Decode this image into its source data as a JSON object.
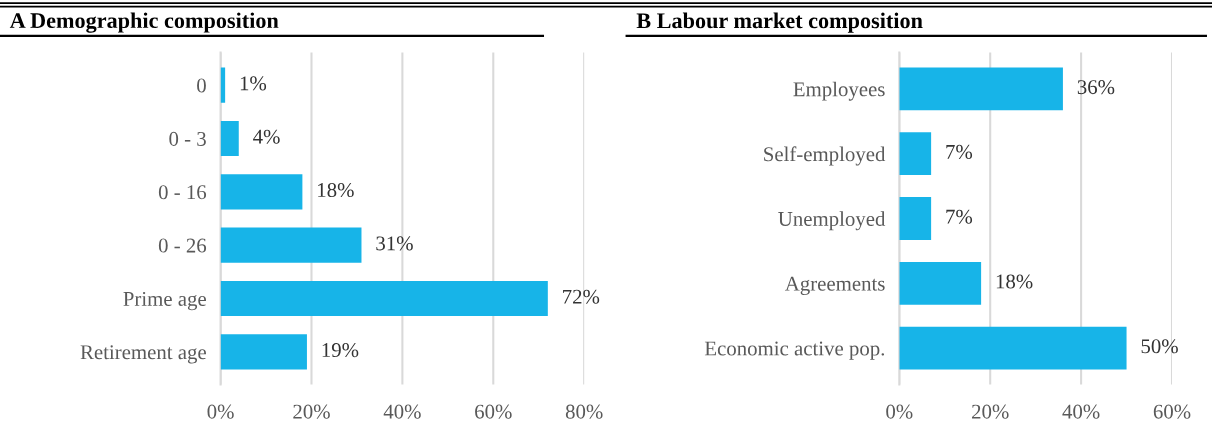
{
  "chart_data": [
    {
      "type": "bar",
      "orientation": "horizontal",
      "title": "A Demographic composition",
      "categories": [
        "0",
        "0 - 3",
        "0 - 16",
        "0 - 26",
        "Prime age",
        "Retirement age"
      ],
      "values": [
        1,
        4,
        18,
        31,
        72,
        19
      ],
      "color": "#17b4e8",
      "value_labels": [
        "1%",
        "4%",
        "18%",
        "31%",
        "72%",
        "19%"
      ],
      "xlim": [
        0,
        80
      ],
      "xticks": [
        {
          "value": 0,
          "label": "0%"
        },
        {
          "value": 20,
          "label": "20%"
        },
        {
          "value": 40,
          "label": "40%"
        },
        {
          "value": 60,
          "label": "60%"
        },
        {
          "value": 80,
          "label": "80%"
        }
      ],
      "grid": "x",
      "legend": false
    },
    {
      "type": "bar",
      "orientation": "horizontal",
      "title": "B Labour market composition",
      "categories": [
        "Employees",
        "Self-employed",
        "Unemployed",
        "Agreements",
        "Economic active pop."
      ],
      "values": [
        36,
        7,
        7,
        18,
        50
      ],
      "color": "#17b4e8",
      "value_labels": [
        "36%",
        "7%",
        "7%",
        "18%",
        "50%"
      ],
      "xlim": [
        0,
        60
      ],
      "xticks": [
        {
          "value": 0,
          "label": "0%"
        },
        {
          "value": 20,
          "label": "20%"
        },
        {
          "value": 40,
          "label": "40%"
        },
        {
          "value": 60,
          "label": "60%"
        }
      ],
      "grid": "x",
      "legend": false
    }
  ]
}
